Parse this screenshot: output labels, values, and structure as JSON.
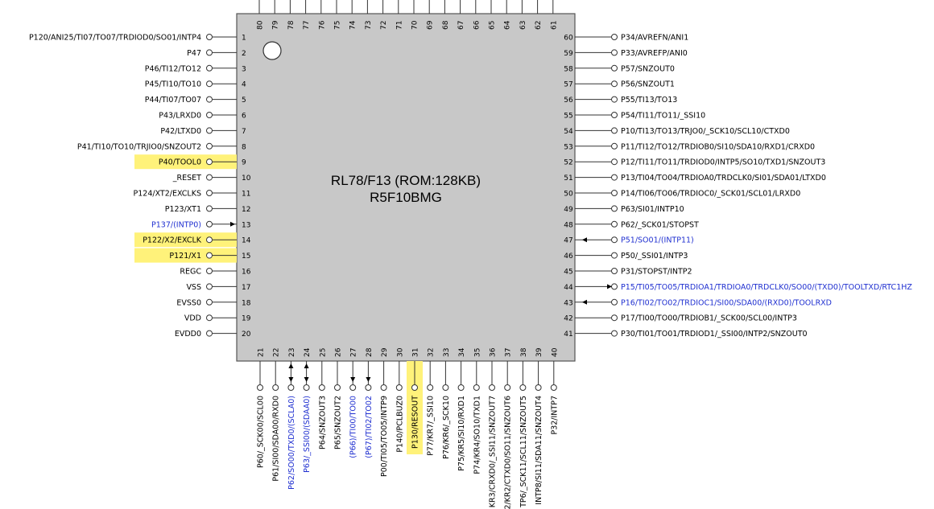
{
  "chip": {
    "title": "RL78/F13 (ROM:128KB)",
    "part": "R5F10BMG",
    "body_color": "#c8c8c8",
    "highlight_color": "#fff27a",
    "blue_label_color": "#1f2fd0"
  },
  "pins_left": [
    {
      "num": "1",
      "label": "P120/ANI25/TI07/TO07/TRDIOD0/SO01/INTP4"
    },
    {
      "num": "2",
      "label": "P47"
    },
    {
      "num": "3",
      "label": "P46/TI12/TO12"
    },
    {
      "num": "4",
      "label": "P45/TI10/TO10"
    },
    {
      "num": "5",
      "label": "P44/TI07/TO07"
    },
    {
      "num": "6",
      "label": "P43/LRXD0"
    },
    {
      "num": "7",
      "label": "P42/LTXD0"
    },
    {
      "num": "8",
      "label": "P41/TI10/TO10/TRJIO0/SNZOUT2"
    },
    {
      "num": "9",
      "label": "P40/TOOL0",
      "highlight": true
    },
    {
      "num": "10",
      "label": "_RESET"
    },
    {
      "num": "11",
      "label": "P124/XT2/EXCLKS"
    },
    {
      "num": "12",
      "label": "P123/XT1"
    },
    {
      "num": "13",
      "label": "P137/(INTP0)",
      "blue": true,
      "arrow": "in"
    },
    {
      "num": "14",
      "label": "P122/X2/EXCLK",
      "highlight": true
    },
    {
      "num": "15",
      "label": "P121/X1",
      "highlight": true
    },
    {
      "num": "16",
      "label": "REGC"
    },
    {
      "num": "17",
      "label": "VSS"
    },
    {
      "num": "18",
      "label": "EVSS0"
    },
    {
      "num": "19",
      "label": "VDD"
    },
    {
      "num": "20",
      "label": "EVDD0"
    }
  ],
  "pins_right": [
    {
      "num": "60",
      "label": "P34/AVREFN/ANI1"
    },
    {
      "num": "59",
      "label": "P33/AVREFP/ANI0"
    },
    {
      "num": "58",
      "label": "P57/SNZOUT0"
    },
    {
      "num": "57",
      "label": "P56/SNZOUT1"
    },
    {
      "num": "56",
      "label": "P55/TI13/TO13"
    },
    {
      "num": "55",
      "label": "P54/TI11/TO11/_SSI10"
    },
    {
      "num": "54",
      "label": "P10/TI13/TO13/TRJO0/_SCK10/SCL10/CTXD0"
    },
    {
      "num": "53",
      "label": "P11/TI12/TO12/TRDIOB0/SI10/SDA10/RXD1/CRXD0"
    },
    {
      "num": "52",
      "label": "P12/TI11/TO11/TRDIOD0/INTP5/SO10/TXD1/SNZOUT3"
    },
    {
      "num": "51",
      "label": "P13/TI04/TO04/TRDIOA0/TRDCLK0/SI01/SDA01/LTXD0"
    },
    {
      "num": "50",
      "label": "P14/TI06/TO06/TRDIOC0/_SCK01/SCL01/LRXD0"
    },
    {
      "num": "49",
      "label": "P63/SI01/INTP10"
    },
    {
      "num": "48",
      "label": "P62/_SCK01/STOPST"
    },
    {
      "num": "47",
      "label": "P51/SO01/(INTP11)",
      "blue": true,
      "arrow": "in"
    },
    {
      "num": "46",
      "label": "P50/_SSI01/INTP3"
    },
    {
      "num": "45",
      "label": "P31/STOPST/INTP2"
    },
    {
      "num": "44",
      "label": "P15/TI05/TO05/TRDIOA1/TRDIOA0/TRDCLK0/SO00/(TXD0)/TOOLTXD/RTC1HZ",
      "blue": true,
      "arrow": "out"
    },
    {
      "num": "43",
      "label": "P16/TI02/TO02/TRDIOC1/SI00/SDA00/(RXD0)/TOOLRXD",
      "blue": true,
      "arrow": "in"
    },
    {
      "num": "42",
      "label": "P17/TI00/TO00/TRDIOB1/_SCK00/SCL00/INTP3"
    },
    {
      "num": "41",
      "label": "P30/TI01/TO01/TRDIOD1/_SSI00/INTP2/SNZOUT0"
    }
  ],
  "pins_bottom": [
    {
      "num": "21",
      "label": "P60/_SCK00/SCL00"
    },
    {
      "num": "22",
      "label": "P61/SI00/SDA00/RXD0"
    },
    {
      "num": "23",
      "label": "P62/SO00/TXD0/(SCLA0)",
      "blue": true,
      "arrow": "both"
    },
    {
      "num": "24",
      "label": "P63/_SSI00/(SDAA0)",
      "blue": true,
      "arrow": "both"
    },
    {
      "num": "25",
      "label": "P64/SNZOUT3"
    },
    {
      "num": "26",
      "label": "P65/SNZOUT2"
    },
    {
      "num": "27",
      "label": "(P66)/TI00/TO00",
      "blue": true,
      "arrow": "down"
    },
    {
      "num": "28",
      "label": "(P67)/TI02/TO02",
      "blue": true,
      "arrow": "down"
    },
    {
      "num": "29",
      "label": "P00/TI05/TO05/INTP9"
    },
    {
      "num": "30",
      "label": "P140/PCLBUZ0"
    },
    {
      "num": "31",
      "label": "P130/RESOUT",
      "highlight": true
    },
    {
      "num": "32",
      "label": "P77/KR7/_SSI10"
    },
    {
      "num": "33",
      "label": "P76/KR6/_SCK10"
    },
    {
      "num": "34",
      "label": "P75/KR5/SI10/RXD1"
    },
    {
      "num": "35",
      "label": "P74/KR4/SO10/TXD1"
    },
    {
      "num": "36",
      "label": "KR3/CRXD0/_SSI11/SNZOUT7"
    },
    {
      "num": "37",
      "label": "2/KR2/CTXD0/SO11/SNZOUT6"
    },
    {
      "num": "38",
      "label": "TP6/_SCK11/SCL11/SNZOUT5"
    },
    {
      "num": "39",
      "label": "INTP8/SI11/SDA11/SNZOUT4"
    },
    {
      "num": "40",
      "label": "P32/INTP7"
    }
  ],
  "pins_top": [
    {
      "num": "80"
    },
    {
      "num": "79"
    },
    {
      "num": "78"
    },
    {
      "num": "77"
    },
    {
      "num": "76"
    },
    {
      "num": "75"
    },
    {
      "num": "74"
    },
    {
      "num": "73"
    },
    {
      "num": "72"
    },
    {
      "num": "71"
    },
    {
      "num": "70"
    },
    {
      "num": "69"
    },
    {
      "num": "68"
    },
    {
      "num": "67"
    },
    {
      "num": "66"
    },
    {
      "num": "65"
    },
    {
      "num": "64"
    },
    {
      "num": "63"
    },
    {
      "num": "62"
    },
    {
      "num": "61"
    }
  ]
}
